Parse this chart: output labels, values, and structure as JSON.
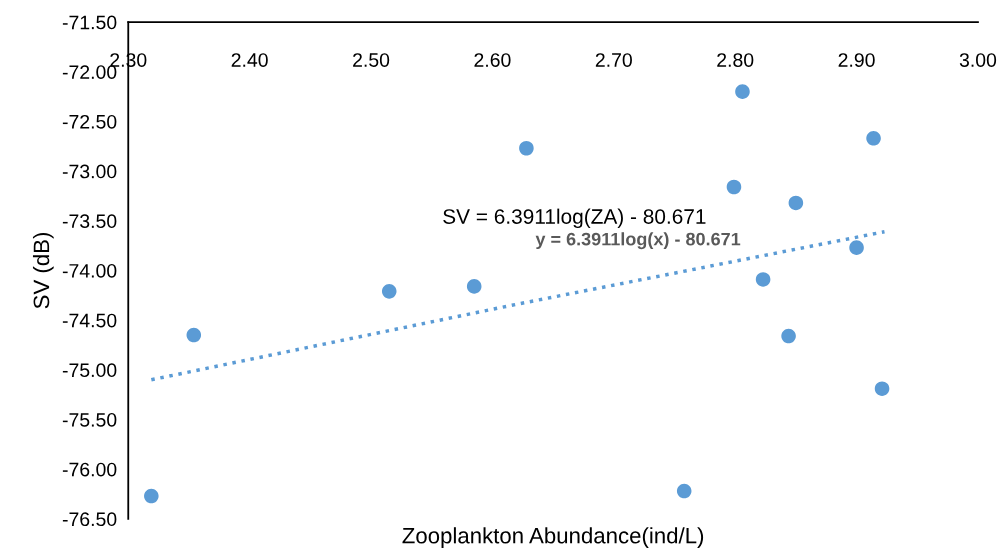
{
  "chart_data": {
    "type": "scatter",
    "xlabel": "Zooplankton Abundance(ind/L)",
    "ylabel": "SV (dB)",
    "annotations": [
      "SV = 6.3911log(ZA) - 80.671",
      "y = 6.3911log(x) - 80.671"
    ],
    "series": [
      {
        "type": "scatter",
        "color": "#5b9bd5",
        "marker": "circle",
        "x": [
          2.319,
          2.354,
          2.515,
          2.585,
          2.628,
          2.758,
          2.806,
          2.799,
          2.85,
          2.823,
          2.844,
          2.9,
          2.914,
          2.921
        ],
        "values": [
          -76.27,
          -74.65,
          -74.21,
          -74.16,
          -72.77,
          -76.22,
          -72.2,
          -73.16,
          -73.32,
          -74.09,
          -74.66,
          -73.77,
          -72.67,
          -75.19
        ]
      },
      {
        "type": "line",
        "color": "#5b9bd5",
        "line_style": "dotted",
        "marker": "none",
        "x": [
          2.319,
          2.62,
          2.923
        ],
        "values": [
          -75.1,
          -74.34,
          -73.61
        ]
      }
    ],
    "xlim": [
      2.3,
      3.0
    ],
    "xticks": [
      {
        "value": 2.3,
        "label": "2.30"
      },
      {
        "value": 2.4,
        "label": "2.40"
      },
      {
        "value": 2.5,
        "label": "2.50"
      },
      {
        "value": 2.6,
        "label": "2.60"
      },
      {
        "value": 2.7,
        "label": "2.70"
      },
      {
        "value": 2.8,
        "label": "2.80"
      },
      {
        "value": 2.9,
        "label": "2.90"
      },
      {
        "value": 3.0,
        "label": "3.00"
      }
    ],
    "ylim": [
      -76.5,
      -71.5
    ],
    "yticks": [
      {
        "value": -71.5,
        "label": "-71.50"
      },
      {
        "value": -72.0,
        "label": "-72.00"
      },
      {
        "value": -72.5,
        "label": "-72.50"
      },
      {
        "value": -73.0,
        "label": "-73.00"
      },
      {
        "value": -73.5,
        "label": "-73.50"
      },
      {
        "value": -74.0,
        "label": "-74.00"
      },
      {
        "value": -74.5,
        "label": "-74.50"
      },
      {
        "value": -75.0,
        "label": "-75.00"
      },
      {
        "value": -75.5,
        "label": "-75.50"
      },
      {
        "value": -76.0,
        "label": "-76.00"
      },
      {
        "value": -76.5,
        "label": "-76.50"
      }
    ],
    "grid": false,
    "legend": false
  }
}
